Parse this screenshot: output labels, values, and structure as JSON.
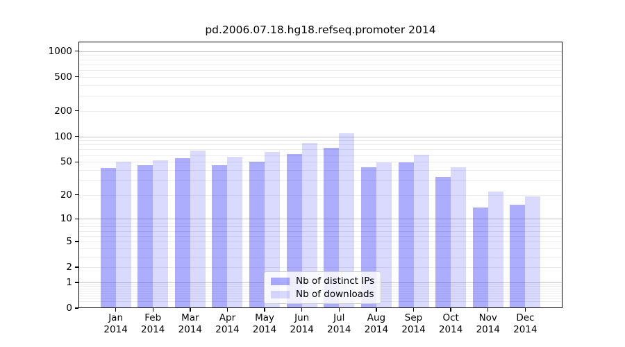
{
  "chart_data": {
    "type": "bar",
    "title": "pd.2006.07.18.hg18.refseq.promoter 2014",
    "categories": [
      "Jan",
      "Feb",
      "Mar",
      "Apr",
      "May",
      "Jun",
      "Jul",
      "Aug",
      "Sep",
      "Oct",
      "Nov",
      "Dec"
    ],
    "category_year": "2014",
    "series": [
      {
        "name": "Nb of distinct IPs",
        "color": "#aaaaff",
        "values": [
          42,
          46,
          55,
          46,
          50,
          62,
          74,
          43,
          49,
          33,
          14,
          15
        ]
      },
      {
        "name": "Nb of downloads",
        "color": "#d9d9ff",
        "values": [
          50,
          52,
          68,
          57,
          66,
          84,
          110,
          49,
          61,
          43,
          22,
          19
        ]
      }
    ],
    "xlabel": "",
    "ylabel": "",
    "yscale": "log(1+y)",
    "yticks": [
      0,
      1,
      2,
      5,
      10,
      20,
      50,
      100,
      200,
      500,
      1000
    ],
    "ylim": [
      0,
      1290
    ],
    "grid": "on",
    "legend_position": "bottom-center",
    "colors": {
      "bar_distinct_ips": "#aaaaff",
      "bar_downloads": "#d9d9ff",
      "grid_major": "#c3c3c3",
      "grid_minor": "#ececec",
      "axis_frame": "#000000",
      "legend_border": "#cccccc"
    }
  }
}
